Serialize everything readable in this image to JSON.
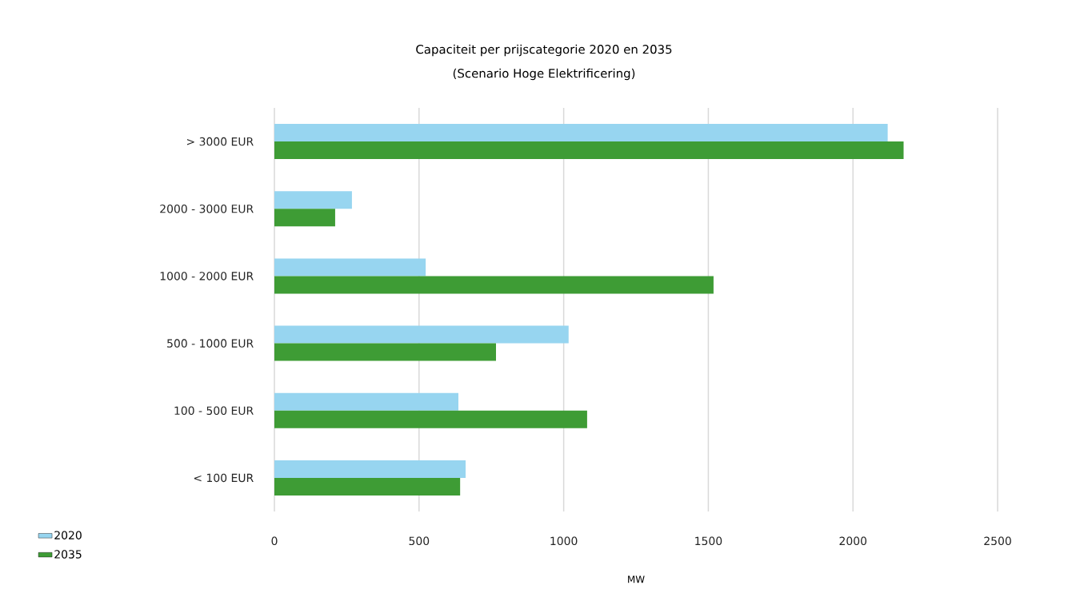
{
  "chart_data": {
    "type": "bar",
    "orientation": "horizontal",
    "title": "Capaciteit per prijscategorie 2020 en 2035",
    "subtitle": "(Scenario Hoge Elektrificering)",
    "xlabel": "MW",
    "categories": [
      "> 3000 EUR",
      "2000 - 3000 EUR",
      "1000 - 2000 EUR",
      "500 - 1000 EUR",
      "100 - 500 EUR",
      "< 100 EUR"
    ],
    "series": [
      {
        "name": "2020",
        "color": "#97d5f0",
        "values": [
          2120,
          268,
          523,
          1017,
          636,
          661
        ]
      },
      {
        "name": "2035",
        "color": "#3e9c35",
        "values": [
          2175,
          210,
          1518,
          766,
          1081,
          642
        ]
      }
    ],
    "xlim": [
      0,
      2500
    ],
    "xticks": [
      0,
      500,
      1000,
      1500,
      2000,
      2500
    ],
    "grid": "x",
    "legend": "bottom left"
  }
}
